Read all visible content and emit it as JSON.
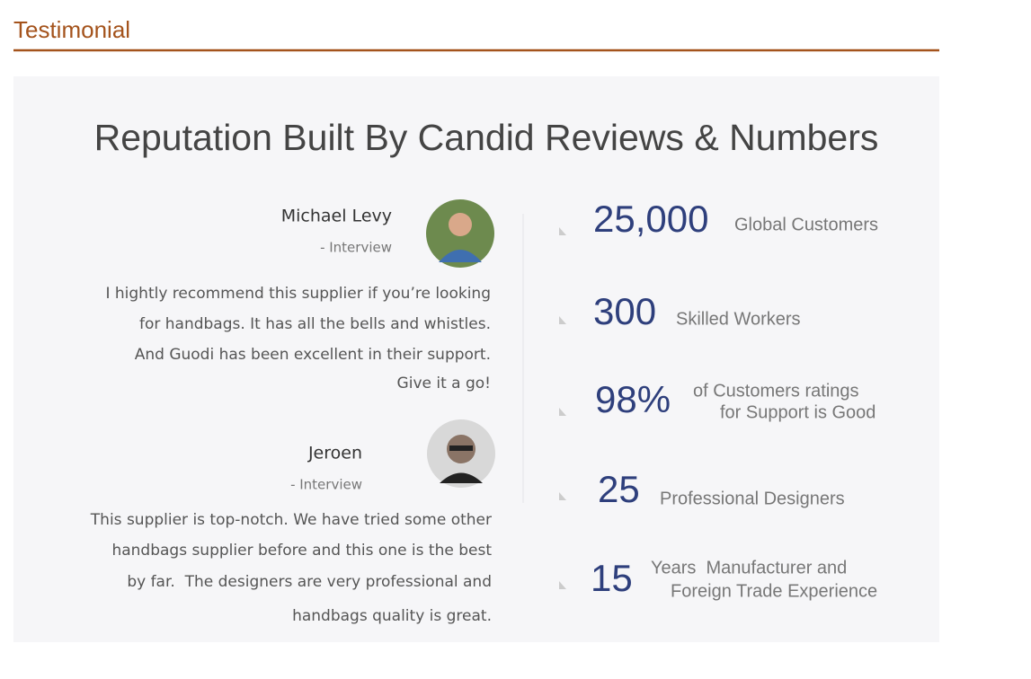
{
  "header": {
    "title": "Testimonial"
  },
  "section": {
    "heading": "Reputation Built By Candid Reviews & Numbers",
    "testimonials": [
      {
        "name": "Michael Levy",
        "role": "- Interview",
        "lines": [
          "I hightly recommend this supplier if you’re looking",
          "for handbags. It has all the bells and whistles.",
          "And Guodi has been excellent in their support.",
          "Give it a go!"
        ]
      },
      {
        "name": "Jeroen",
        "role": "- Interview",
        "lines": [
          "This supplier is top-notch. We have tried some other",
          "handbags supplier before and this one is the best",
          "by far.  The designers are very professional and",
          "handbags quality is great."
        ]
      }
    ],
    "stats": [
      {
        "number": "25,000",
        "label": [
          "Global Customers"
        ]
      },
      {
        "number": "300",
        "label": [
          "Skilled Workers"
        ]
      },
      {
        "number": "98%",
        "label": [
          "of Customers ratings",
          "for Support is Good"
        ]
      },
      {
        "number": "25",
        "label": [
          "Professional Designers"
        ]
      },
      {
        "number": "15",
        "label": [
          "Years  Manufacturer and",
          "Foreign Trade Experience"
        ]
      }
    ]
  }
}
